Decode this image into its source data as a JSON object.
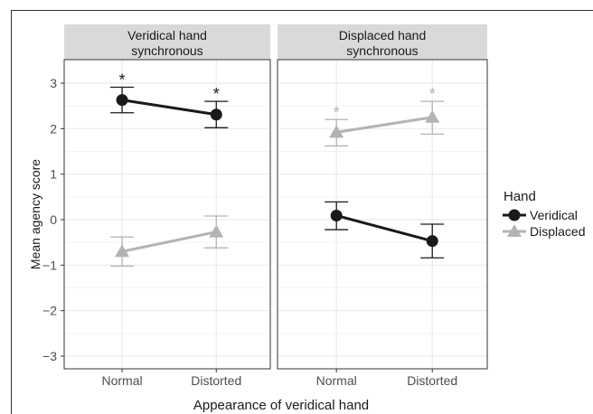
{
  "chart_data": {
    "type": "line",
    "x_axis_title": "Appearance of veridical hand",
    "y_axis_title": "Mean agency score",
    "categories": [
      "Normal",
      "Distorted"
    ],
    "ylim": [
      -3.3,
      3.5
    ],
    "yticks": [
      -3,
      -2,
      -1,
      0,
      1,
      2,
      3
    ],
    "ytick_labels": [
      "−3",
      "−2",
      "−1",
      "0",
      "1",
      "2",
      "3"
    ],
    "grid": true,
    "legend": {
      "title": "Hand",
      "position": "right",
      "entries": [
        {
          "label": "Veridical",
          "color": "#1a1a1a",
          "shape": "circle"
        },
        {
          "label": "Displaced",
          "color": "#b3b3b3",
          "shape": "triangle"
        }
      ]
    },
    "panels": [
      {
        "strip_label_line1": "Veridical hand",
        "strip_label_line2": "synchronous",
        "series": [
          {
            "name": "Veridical",
            "values": [
              2.63,
              2.31
            ],
            "err_low": [
              2.35,
              2.02
            ],
            "err_high": [
              2.91,
              2.6
            ],
            "significance": [
              "*",
              "*"
            ]
          },
          {
            "name": "Displaced",
            "values": [
              -0.7,
              -0.27
            ],
            "err_low": [
              -1.02,
              -0.62
            ],
            "err_high": [
              -0.38,
              0.08
            ],
            "significance": [
              "",
              ""
            ]
          }
        ]
      },
      {
        "strip_label_line1": "Displaced hand",
        "strip_label_line2": "synchronous",
        "series": [
          {
            "name": "Veridical",
            "values": [
              0.09,
              -0.47
            ],
            "err_low": [
              -0.22,
              -0.84
            ],
            "err_high": [
              0.39,
              -0.1
            ],
            "significance": [
              "",
              ""
            ]
          },
          {
            "name": "Displaced",
            "values": [
              1.92,
              2.25
            ],
            "err_low": [
              1.62,
              1.88
            ],
            "err_high": [
              2.2,
              2.6
            ],
            "significance": [
              "*",
              "*"
            ]
          }
        ]
      }
    ],
    "colors": {
      "veridical": "#1a1a1a",
      "displaced": "#b3b3b3",
      "strip_bg": "#d9d9d9",
      "grid": "#ebebeb",
      "panel_border": "#333333"
    }
  }
}
